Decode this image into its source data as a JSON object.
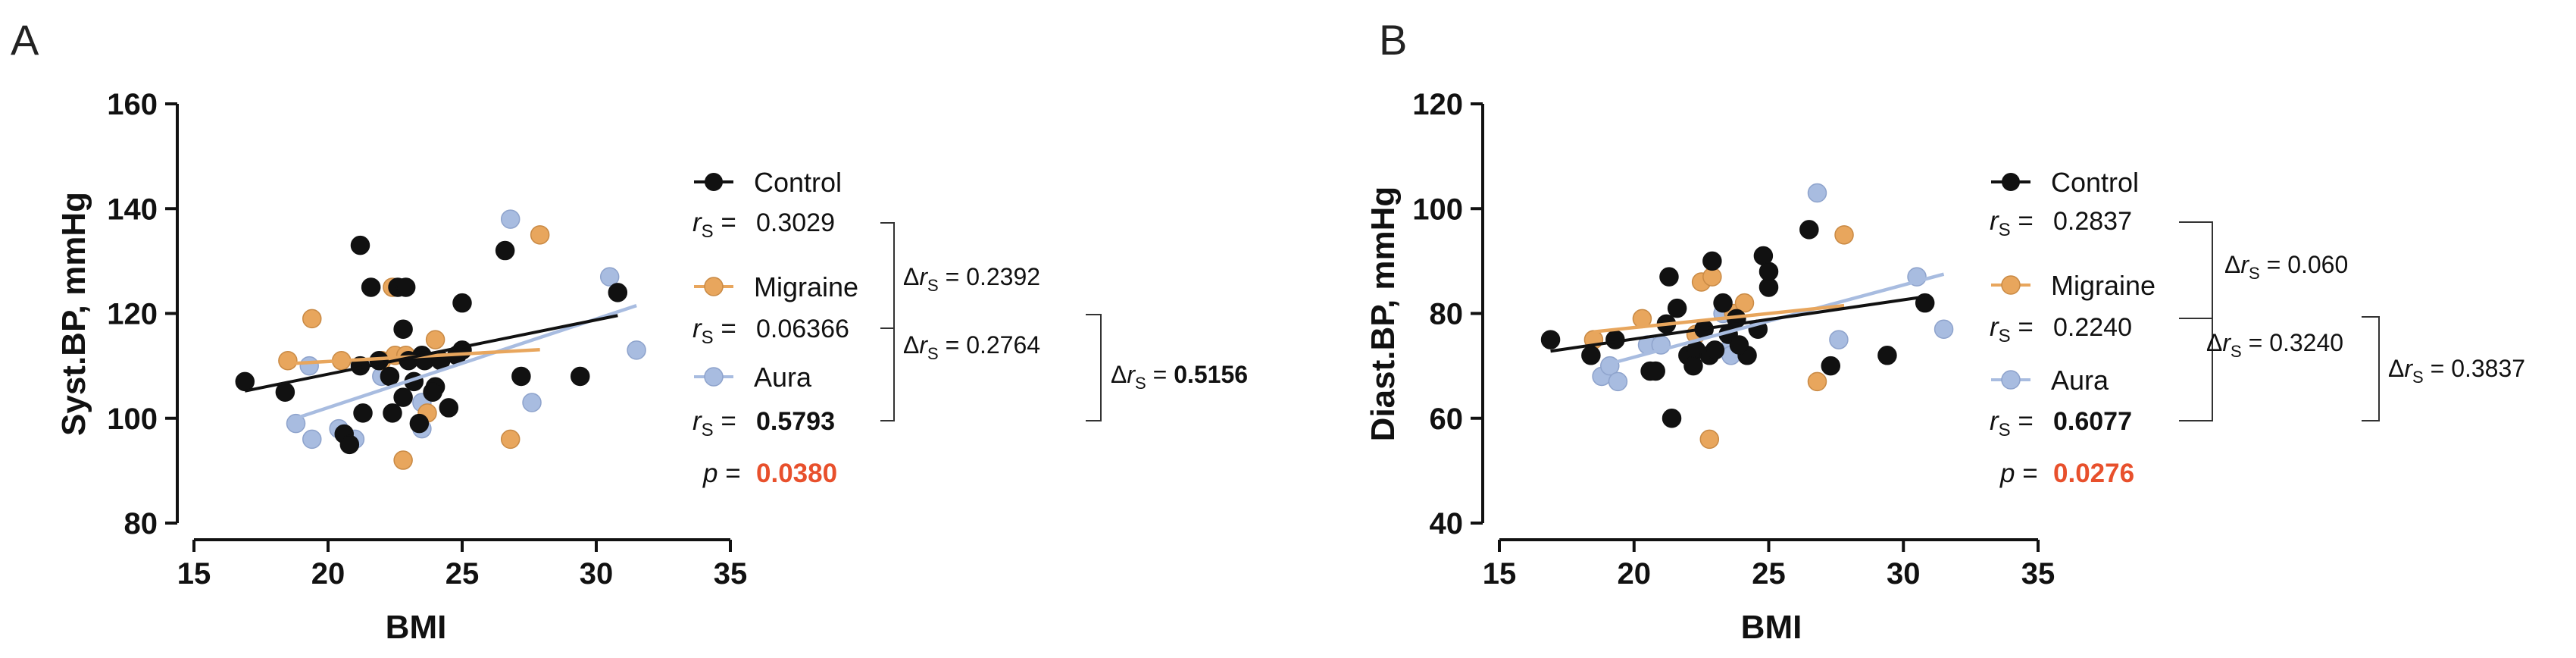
{
  "colors": {
    "control": "#111111",
    "migraine": "#E8A65D",
    "aura": "#A8BCE0",
    "significant": "#E8502C"
  },
  "chart_data": [
    {
      "panel": "A",
      "type": "scatter",
      "xlabel": "BMI",
      "ylabel": "Syst.BP, mmHg",
      "xlim": [
        15,
        35
      ],
      "ylim": [
        80,
        160
      ],
      "xticks": [
        "15",
        "20",
        "25",
        "30",
        "35"
      ],
      "yticks": [
        "80",
        "100",
        "120",
        "140",
        "160"
      ],
      "series": [
        {
          "name": "Control",
          "r_label": "r",
          "r_sub": "S",
          "rs": "0.3029",
          "rs_bold": false,
          "color": "#111111",
          "points": [
            [
              16.9,
              107
            ],
            [
              18.4,
              105
            ],
            [
              20.6,
              97
            ],
            [
              20.8,
              95
            ],
            [
              21.2,
              110
            ],
            [
              21.2,
              133
            ],
            [
              21.3,
              101
            ],
            [
              21.6,
              125
            ],
            [
              21.9,
              111
            ],
            [
              22.3,
              108
            ],
            [
              22.4,
              101
            ],
            [
              22.6,
              125
            ],
            [
              22.8,
              104
            ],
            [
              22.8,
              117
            ],
            [
              22.9,
              125
            ],
            [
              23.0,
              111
            ],
            [
              23.2,
              107
            ],
            [
              23.4,
              99
            ],
            [
              23.5,
              112
            ],
            [
              23.6,
              111
            ],
            [
              24.0,
              106
            ],
            [
              24.2,
              111
            ],
            [
              24.5,
              102
            ],
            [
              25.0,
              113
            ],
            [
              25.0,
              122
            ],
            [
              26.6,
              132
            ],
            [
              27.2,
              108
            ],
            [
              29.4,
              108
            ],
            [
              30.8,
              124
            ],
            [
              24.8,
              112
            ],
            [
              23.9,
              105
            ]
          ],
          "trend": [
            [
              16.9,
              105.2
            ],
            [
              30.8,
              119.6
            ]
          ]
        },
        {
          "name": "Migraine",
          "r_label": "r",
          "r_sub": "S",
          "rs": "0.06366",
          "rs_bold": false,
          "color": "#E8A65D",
          "points": [
            [
              18.5,
              111
            ],
            [
              19.4,
              119
            ],
            [
              20.5,
              111
            ],
            [
              22.0,
              111
            ],
            [
              22.4,
              125
            ],
            [
              22.5,
              112
            ],
            [
              22.8,
              92
            ],
            [
              22.9,
              112
            ],
            [
              23.7,
              101
            ],
            [
              24.0,
              115
            ],
            [
              26.8,
              96
            ],
            [
              27.9,
              135
            ]
          ],
          "trend": [
            [
              18.5,
              110.4
            ],
            [
              27.9,
              113.1
            ]
          ]
        },
        {
          "name": "Aura",
          "r_label": "r",
          "r_sub": "S",
          "rs": "0.5793",
          "rs_bold": true,
          "color": "#A8BCE0",
          "points": [
            [
              18.8,
              99
            ],
            [
              19.3,
              110
            ],
            [
              19.4,
              96
            ],
            [
              20.4,
              98
            ],
            [
              21.0,
              96
            ],
            [
              22.0,
              108
            ],
            [
              23.5,
              98
            ],
            [
              23.5,
              103
            ],
            [
              26.8,
              138
            ],
            [
              27.6,
              103
            ],
            [
              30.5,
              127
            ],
            [
              31.5,
              113
            ]
          ],
          "trend": [
            [
              18.8,
              100
            ],
            [
              31.5,
              121.5
            ]
          ]
        }
      ],
      "delta_rs": [
        {
          "label": "Δr",
          "sub": "S",
          "eq": " = ",
          "value": "0.2392",
          "bold": false
        },
        {
          "label": "Δr",
          "sub": "S",
          "eq": " = ",
          "value": "0.2764",
          "bold": false
        },
        {
          "label": "Δr",
          "sub": "S",
          "eq": " = ",
          "value": "0.5156",
          "bold": true
        }
      ],
      "p_label": "p",
      "p_eq": " = ",
      "p_value": "0.0380"
    },
    {
      "panel": "B",
      "type": "scatter",
      "xlabel": "BMI",
      "ylabel": "Diast.BP, mmHg",
      "xlim": [
        15,
        35
      ],
      "ylim": [
        40,
        120
      ],
      "xticks": [
        "15",
        "20",
        "25",
        "30",
        "35"
      ],
      "yticks": [
        "40",
        "60",
        "80",
        "100",
        "120"
      ],
      "series": [
        {
          "name": "Control",
          "r_label": "r",
          "r_sub": "S",
          "rs": "0.2837",
          "rs_bold": false,
          "color": "#111111",
          "points": [
            [
              16.9,
              75
            ],
            [
              18.4,
              72
            ],
            [
              19.3,
              75
            ],
            [
              20.6,
              69
            ],
            [
              20.8,
              69
            ],
            [
              21.2,
              78
            ],
            [
              21.3,
              87
            ],
            [
              21.4,
              60
            ],
            [
              21.6,
              81
            ],
            [
              22.0,
              72
            ],
            [
              22.3,
              73
            ],
            [
              22.6,
              77
            ],
            [
              22.8,
              72
            ],
            [
              22.9,
              90
            ],
            [
              23.0,
              73
            ],
            [
              23.3,
              82
            ],
            [
              23.5,
              76
            ],
            [
              23.8,
              79
            ],
            [
              24.2,
              72
            ],
            [
              24.6,
              77
            ],
            [
              24.8,
              91
            ],
            [
              25.0,
              85
            ],
            [
              25.0,
              88
            ],
            [
              26.5,
              96
            ],
            [
              27.3,
              70
            ],
            [
              29.4,
              72
            ],
            [
              30.8,
              82
            ],
            [
              23.9,
              74
            ],
            [
              22.2,
              70
            ]
          ],
          "trend": [
            [
              16.9,
              72.8
            ],
            [
              30.8,
              83.2
            ]
          ]
        },
        {
          "name": "Migraine",
          "r_label": "r",
          "r_sub": "S",
          "rs": "0.2240",
          "rs_bold": false,
          "color": "#E8A65D",
          "points": [
            [
              18.5,
              75
            ],
            [
              20.3,
              79
            ],
            [
              22.3,
              76
            ],
            [
              22.5,
              86
            ],
            [
              22.8,
              56
            ],
            [
              22.9,
              87
            ],
            [
              23.7,
              80
            ],
            [
              24.1,
              82
            ],
            [
              26.8,
              67
            ],
            [
              27.8,
              95
            ]
          ],
          "trend": [
            [
              18.5,
              76.5
            ],
            [
              27.8,
              81.5
            ]
          ]
        },
        {
          "name": "Aura",
          "r_label": "r",
          "r_sub": "S",
          "rs": "0.6077",
          "rs_bold": true,
          "color": "#A8BCE0",
          "points": [
            [
              18.8,
              68
            ],
            [
              19.1,
              70
            ],
            [
              19.4,
              67
            ],
            [
              20.5,
              74
            ],
            [
              21.0,
              74
            ],
            [
              23.3,
              80
            ],
            [
              23.5,
              73
            ],
            [
              23.6,
              72
            ],
            [
              26.8,
              103
            ],
            [
              27.6,
              75
            ],
            [
              30.5,
              87
            ],
            [
              31.5,
              77
            ]
          ],
          "trend": [
            [
              18.8,
              70
            ],
            [
              31.5,
              87.5
            ]
          ]
        }
      ],
      "delta_rs": [
        {
          "label": "Δr",
          "sub": "S",
          "eq": " = ",
          "value": "0.060",
          "bold": false
        },
        {
          "label": "Δr",
          "sub": "S",
          "eq": " = ",
          "value": "0.3240",
          "bold": false
        },
        {
          "label": "Δr",
          "sub": "S",
          "eq": " = ",
          "value": "0.3837",
          "bold": false
        }
      ],
      "p_label": "p",
      "p_eq": " = ",
      "p_value": "0.0276"
    }
  ]
}
